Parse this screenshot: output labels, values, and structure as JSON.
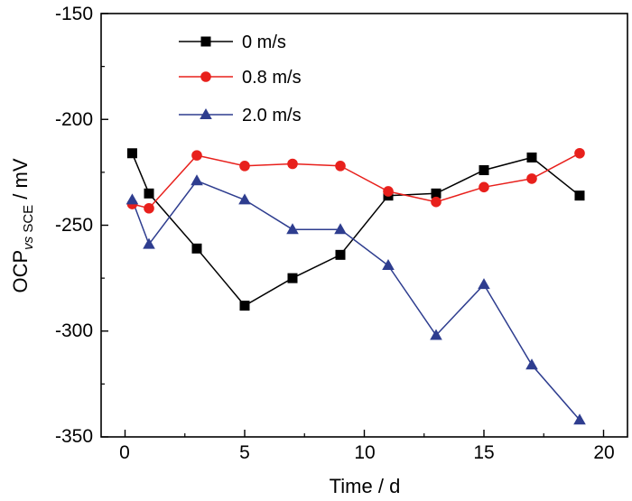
{
  "chart_data": {
    "type": "line",
    "title": "",
    "xlabel": "Time / d",
    "ylabel": {
      "main": "OCP",
      "subscript_italic": "vs",
      "subscript_rest": " SCE",
      "suffix": " / mV"
    },
    "xlim": [
      -1,
      21
    ],
    "ylim": [
      -350,
      -150
    ],
    "xticks": [
      0,
      5,
      10,
      15,
      20
    ],
    "xtick_labels": [
      "0",
      "5",
      "10",
      "15",
      "20"
    ],
    "yticks": [
      -150,
      -200,
      -250,
      -300,
      -350
    ],
    "ytick_labels": [
      "-150",
      "-200",
      "-250",
      "-300",
      "-350"
    ],
    "grid": false,
    "legend_position": "top-left",
    "series": [
      {
        "name": "0 m/s",
        "color": "#000000",
        "marker": "square",
        "x": [
          0.3,
          1,
          3,
          5,
          7,
          9,
          11,
          13,
          15,
          17,
          19
        ],
        "values": [
          -216,
          -235,
          -261,
          -288,
          -275,
          -264,
          -236,
          -235,
          -224,
          -218,
          -236
        ]
      },
      {
        "name": "0.8 m/s",
        "color": "#e8201c",
        "marker": "circle",
        "x": [
          0.3,
          1,
          3,
          5,
          7,
          9,
          11,
          13,
          15,
          17,
          19
        ],
        "values": [
          -240,
          -242,
          -217,
          -222,
          -221,
          -222,
          -234,
          -239,
          -232,
          -228,
          -216
        ]
      },
      {
        "name": "2.0 m/s",
        "color": "#2e3d8f",
        "marker": "triangle",
        "x": [
          0.3,
          1,
          3,
          5,
          7,
          9,
          11,
          13,
          15,
          17,
          19
        ],
        "values": [
          -238,
          -259,
          -229,
          -238,
          -252,
          -252,
          -269,
          -302,
          -278,
          -316,
          -342
        ]
      }
    ]
  }
}
